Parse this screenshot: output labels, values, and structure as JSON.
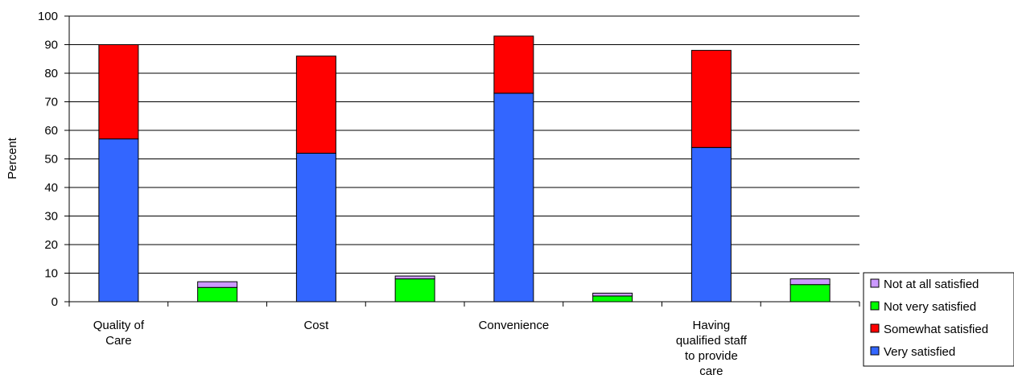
{
  "chart_data": {
    "type": "bar",
    "stacked": true,
    "ylabel": "Percent",
    "ylim": [
      0,
      100
    ],
    "yticks": [
      0,
      10,
      20,
      30,
      40,
      50,
      60,
      70,
      80,
      90,
      100
    ],
    "grid": true,
    "legend_position": "right",
    "category_slots": [
      "Quality of Care",
      "",
      "Cost",
      "",
      "Convenience",
      "",
      "Having qualified staff to provide care",
      ""
    ],
    "category_label_lines": [
      [
        "Quality of",
        "Care"
      ],
      [],
      [
        "Cost"
      ],
      [],
      [
        "Convenience"
      ],
      [],
      [
        "Having",
        "qualified staff",
        "to provide",
        "care"
      ],
      []
    ],
    "series": [
      {
        "name": "Very satisfied",
        "color": "#3366FF",
        "values": [
          57,
          0,
          52,
          0,
          73,
          0,
          54,
          0
        ]
      },
      {
        "name": "Somewhat satisfied",
        "color": "#FF0000",
        "values": [
          33,
          0,
          34,
          0,
          20,
          0,
          34,
          0
        ]
      },
      {
        "name": "Not very satisfied",
        "color": "#00FF00",
        "values": [
          0,
          5,
          0,
          8,
          0,
          2,
          0,
          6
        ]
      },
      {
        "name": "Not at all satisfied",
        "color": "#CC99FF",
        "values": [
          0,
          2,
          0,
          1,
          0,
          1,
          0,
          2
        ]
      }
    ],
    "legend_order": [
      "Not at all satisfied",
      "Not very satisfied",
      "Somewhat satisfied",
      "Very satisfied"
    ]
  }
}
